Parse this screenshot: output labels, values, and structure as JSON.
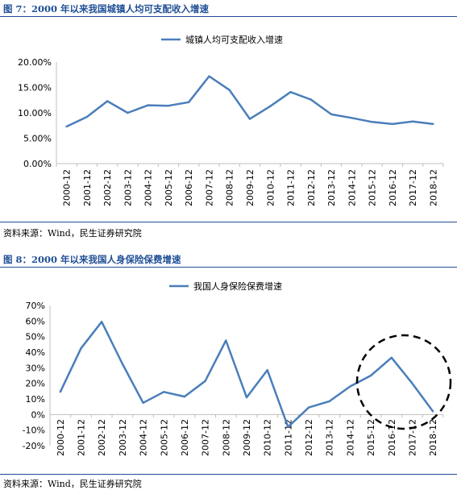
{
  "figure1": {
    "title": "图 7：2000 年以来我国城镇人均可支配收入增速",
    "source": "资料来源：Wind，民生证券研究院"
  },
  "figure2": {
    "title": "图 8：2000 年以来我国人身保险保费增速",
    "source": "资料来源：Wind，民生证券研究院"
  },
  "colors": {
    "line": "#4a7ebb",
    "accent": "#1f4e96",
    "axis": "#bfbfbf"
  },
  "chart_data": [
    {
      "type": "line",
      "title": "",
      "categories": [
        "2000-12",
        "2001-12",
        "2002-12",
        "2003-12",
        "2004-12",
        "2005-12",
        "2006-12",
        "2007-12",
        "2008-12",
        "2009-12",
        "2010-12",
        "2011-12",
        "2012-12",
        "2013-12",
        "2014-12",
        "2015-12",
        "2016-12",
        "2017-12",
        "2018-12"
      ],
      "series": [
        {
          "name": "城镇人均可支配收入增速",
          "values": [
            7.3,
            9.2,
            12.3,
            10.0,
            11.5,
            11.4,
            12.1,
            17.2,
            14.5,
            8.8,
            11.3,
            14.1,
            12.6,
            9.7,
            9.0,
            8.2,
            7.8,
            8.3,
            7.8
          ]
        }
      ],
      "yticks": [
        "0.00%",
        "5.00%",
        "10.00%",
        "15.00%",
        "20.00%"
      ],
      "ylim": [
        0,
        20
      ],
      "legend": "top",
      "grid": false
    },
    {
      "type": "line",
      "title": "",
      "categories": [
        "2000-12",
        "2001-12",
        "2002-12",
        "2003-12",
        "2004-12",
        "2005-12",
        "2006-12",
        "2007-12",
        "2008-12",
        "2009-12",
        "2010-12",
        "2011-12",
        "2012-12",
        "2013-12",
        "2014-12",
        "2015-12",
        "2016-12",
        "2017-12",
        "2018-12"
      ],
      "series": [
        {
          "name": "我国人身保险保费增速",
          "values": [
            14.5,
            42.5,
            59.5,
            32.5,
            7.5,
            14.5,
            11.5,
            21.5,
            47.5,
            11.0,
            28.5,
            -8.0,
            4.5,
            8.5,
            18.0,
            25.0,
            36.5,
            20.0,
            2.0
          ]
        }
      ],
      "yticks": [
        "-20%",
        "-10%",
        "0%",
        "10%",
        "20%",
        "30%",
        "40%",
        "50%",
        "60%",
        "70%"
      ],
      "ylim": [
        -20,
        70
      ],
      "legend": "top",
      "grid": false,
      "annotation": "dashed circle around 2015-12 to 2018-12"
    }
  ]
}
